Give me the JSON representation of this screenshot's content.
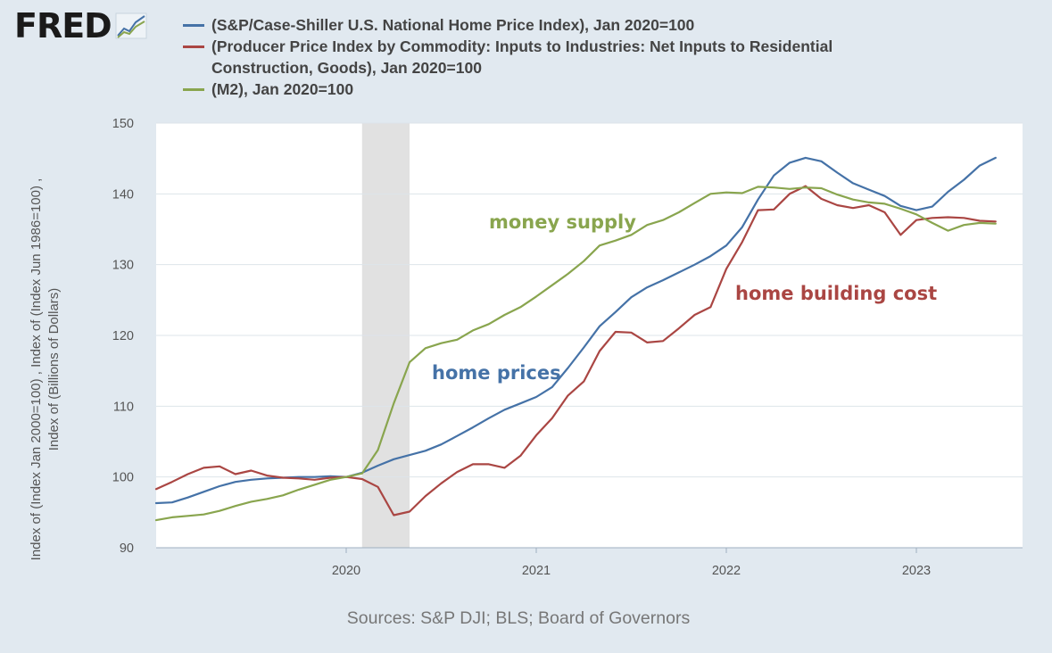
{
  "logo": {
    "text": "FRED",
    "icon": "trend-lines-icon"
  },
  "source": "Sources: S&P DJI; BLS; Board of Governors",
  "chart_data": {
    "type": "line",
    "ylabel_lines": [
      "Index of (Index Jan 2000=100) , Index of (Index Jun 1986=100) ,",
      "Index of (Billions of Dollars)"
    ],
    "ylim": [
      90,
      150
    ],
    "yticks": [
      "90",
      "100",
      "110",
      "120",
      "130",
      "140",
      "150"
    ],
    "xticks": [
      "2020",
      "2021",
      "2022",
      "2023"
    ],
    "x_start": "2019-01",
    "grid": true,
    "recession_shading": {
      "from": "2020-02",
      "to": "2020-04"
    },
    "legend_position": "top",
    "series": [
      {
        "name": "(S&P/Case-Shiller U.S. National Home Price Index), Jan 2020=100",
        "color": "#4572a7",
        "annotation": "home prices",
        "values": [
          96.3,
          96.4,
          97.1,
          97.9,
          98.7,
          99.3,
          99.6,
          99.8,
          99.9,
          100.0,
          100.0,
          100.1,
          100.0,
          100.6,
          101.6,
          102.5,
          103.1,
          103.7,
          104.6,
          105.8,
          107.0,
          108.3,
          109.5,
          110.4,
          111.3,
          112.7,
          115.4,
          118.3,
          121.3,
          123.3,
          125.4,
          126.8,
          127.8,
          128.9,
          130.0,
          131.2,
          132.7,
          135.3,
          139.2,
          142.6,
          144.4,
          145.1,
          144.6,
          143.0,
          141.5,
          140.6,
          139.7,
          138.3,
          137.7,
          138.2,
          140.3,
          142.0,
          144.0,
          145.1
        ]
      },
      {
        "name": "(Producer Price Index by Commodity: Inputs to Industries: Net Inputs to Residential Construction, Goods), Jan 2020=100",
        "color": "#aa4643",
        "annotation": "home building cost",
        "values": [
          98.3,
          99.3,
          100.4,
          101.3,
          101.5,
          100.4,
          100.9,
          100.2,
          99.9,
          99.8,
          99.6,
          99.9,
          100.0,
          99.7,
          98.6,
          94.6,
          95.1,
          97.3,
          99.1,
          100.7,
          101.8,
          101.8,
          101.3,
          103.0,
          105.9,
          108.3,
          111.5,
          113.5,
          117.8,
          120.5,
          120.4,
          119.0,
          119.2,
          121.0,
          122.9,
          124.0,
          129.4,
          133.2,
          137.7,
          137.8,
          140.0,
          141.1,
          139.3,
          138.4,
          138.0,
          138.4,
          137.4,
          134.2,
          136.3,
          136.6,
          136.7,
          136.6,
          136.2,
          136.1
        ]
      },
      {
        "name": "(M2), Jan 2020=100",
        "color": "#89a54e",
        "annotation": "money supply",
        "values": [
          93.9,
          94.3,
          94.5,
          94.7,
          95.2,
          95.9,
          96.5,
          96.9,
          97.4,
          98.2,
          98.9,
          99.6,
          100.0,
          100.5,
          103.8,
          110.4,
          116.2,
          118.2,
          118.9,
          119.4,
          120.7,
          121.6,
          122.9,
          124.0,
          125.5,
          127.1,
          128.7,
          130.5,
          132.7,
          133.4,
          134.2,
          135.6,
          136.3,
          137.4,
          138.7,
          140.0,
          140.2,
          140.1,
          141.0,
          140.9,
          140.7,
          140.9,
          140.8,
          139.9,
          139.2,
          138.8,
          138.6,
          137.9,
          137.1,
          135.9,
          134.8,
          135.6,
          135.9,
          135.8
        ]
      }
    ]
  }
}
